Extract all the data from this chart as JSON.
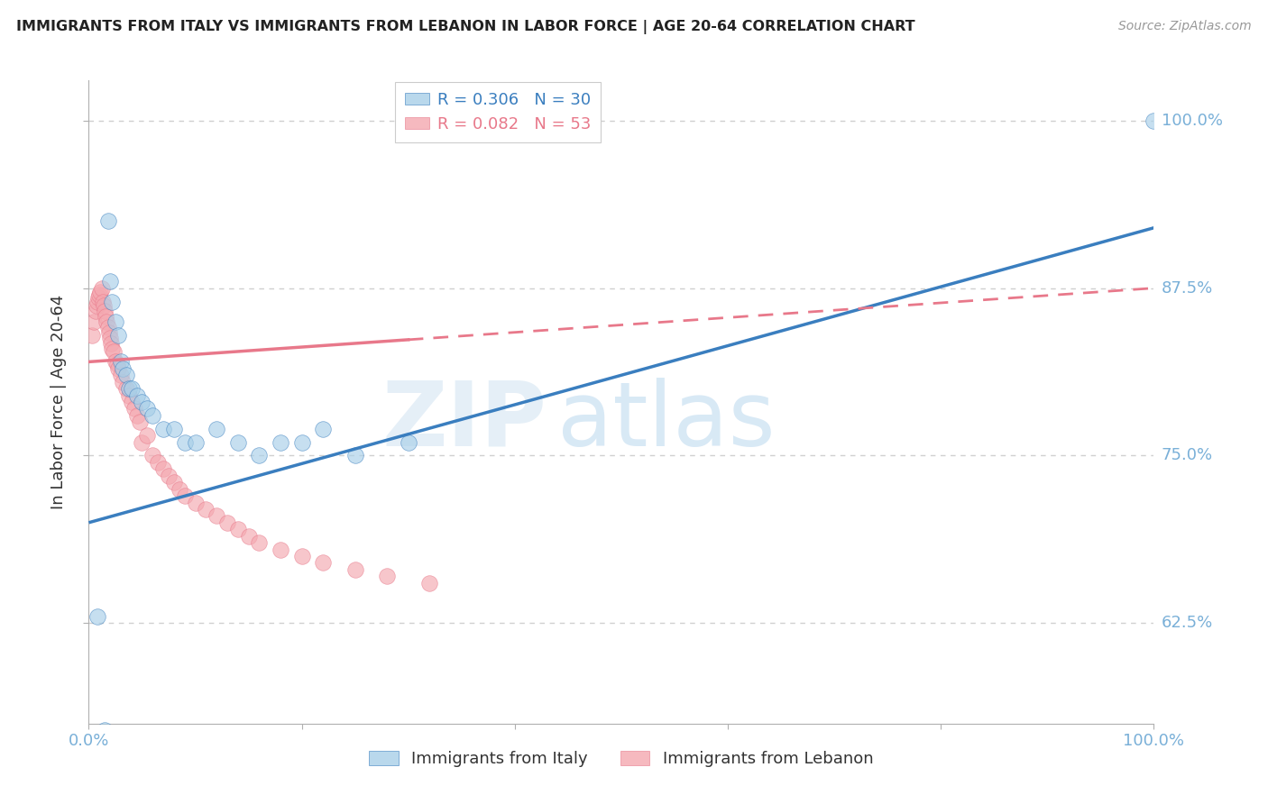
{
  "title": "IMMIGRANTS FROM ITALY VS IMMIGRANTS FROM LEBANON IN LABOR FORCE | AGE 20-64 CORRELATION CHART",
  "source": "Source: ZipAtlas.com",
  "ylabel": "In Labor Force | Age 20-64",
  "xlim": [
    0.0,
    1.0
  ],
  "ylim": [
    0.55,
    1.03
  ],
  "yticks": [
    0.625,
    0.75,
    0.875,
    1.0
  ],
  "ytick_labels": [
    "62.5%",
    "75.0%",
    "87.5%",
    "100.0%"
  ],
  "legend_italy": "R = 0.306   N = 30",
  "legend_lebanon": "R = 0.082   N = 53",
  "watermark_zip": "ZIP",
  "watermark_atlas": "atlas",
  "italy_color": "#a8cfe8",
  "lebanon_color": "#f4a8b0",
  "italy_line_color": "#3a7ebf",
  "lebanon_line_color": "#e8788a",
  "grid_color": "#d0d0d0",
  "label_color": "#7ab0d8",
  "axis_color": "#b0b0b0",
  "italy_scatter_x": [
    0.008,
    0.012,
    0.015,
    0.018,
    0.02,
    0.022,
    0.025,
    0.028,
    0.03,
    0.032,
    0.035,
    0.038,
    0.04,
    0.045,
    0.05,
    0.055,
    0.06,
    0.07,
    0.08,
    0.09,
    0.1,
    0.12,
    0.14,
    0.16,
    0.18,
    0.2,
    0.22,
    0.25,
    0.3,
    1.0
  ],
  "italy_scatter_y": [
    0.63,
    0.535,
    0.545,
    0.925,
    0.88,
    0.865,
    0.85,
    0.84,
    0.82,
    0.815,
    0.81,
    0.8,
    0.8,
    0.795,
    0.79,
    0.785,
    0.78,
    0.77,
    0.77,
    0.76,
    0.76,
    0.77,
    0.76,
    0.75,
    0.76,
    0.76,
    0.77,
    0.75,
    0.76,
    1.0
  ],
  "lebanon_scatter_x": [
    0.003,
    0.005,
    0.006,
    0.007,
    0.008,
    0.009,
    0.01,
    0.011,
    0.012,
    0.013,
    0.014,
    0.015,
    0.016,
    0.017,
    0.018,
    0.019,
    0.02,
    0.021,
    0.022,
    0.023,
    0.025,
    0.027,
    0.028,
    0.03,
    0.032,
    0.035,
    0.038,
    0.04,
    0.043,
    0.045,
    0.048,
    0.05,
    0.055,
    0.06,
    0.065,
    0.07,
    0.075,
    0.08,
    0.085,
    0.09,
    0.1,
    0.11,
    0.12,
    0.13,
    0.14,
    0.15,
    0.16,
    0.18,
    0.2,
    0.22,
    0.25,
    0.28,
    0.32
  ],
  "lebanon_scatter_y": [
    0.84,
    0.85,
    0.858,
    0.862,
    0.865,
    0.868,
    0.87,
    0.872,
    0.875,
    0.865,
    0.862,
    0.858,
    0.854,
    0.85,
    0.846,
    0.842,
    0.838,
    0.834,
    0.83,
    0.828,
    0.82,
    0.818,
    0.815,
    0.81,
    0.805,
    0.8,
    0.795,
    0.79,
    0.785,
    0.78,
    0.775,
    0.76,
    0.765,
    0.75,
    0.745,
    0.74,
    0.735,
    0.73,
    0.725,
    0.72,
    0.715,
    0.71,
    0.705,
    0.7,
    0.695,
    0.69,
    0.685,
    0.68,
    0.675,
    0.67,
    0.665,
    0.66,
    0.655
  ],
  "italy_line_x0": 0.0,
  "italy_line_y0": 0.7,
  "italy_line_x1": 1.0,
  "italy_line_y1": 0.92,
  "lebanon_line_x0": 0.0,
  "lebanon_line_y0": 0.82,
  "lebanon_line_x1": 1.0,
  "lebanon_line_y1": 0.875
}
